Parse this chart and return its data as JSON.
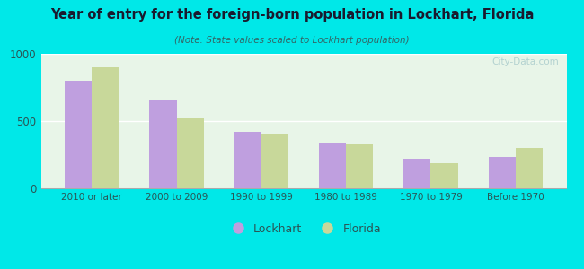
{
  "title": "Year of entry for the foreign-born population in Lockhart, Florida",
  "subtitle": "(Note: State values scaled to Lockhart population)",
  "categories": [
    "2010 or later",
    "2000 to 2009",
    "1990 to 1999",
    "1980 to 1989",
    "1970 to 1979",
    "Before 1970"
  ],
  "lockhart_values": [
    800,
    660,
    420,
    340,
    220,
    235
  ],
  "florida_values": [
    900,
    520,
    400,
    330,
    185,
    300
  ],
  "lockhart_color": "#bf9fdf",
  "florida_color": "#c8d89a",
  "background_color": "#00e8e8",
  "plot_bg_top": "#e8f5e8",
  "plot_bg_bottom": "#f8fdf2",
  "ylim": [
    0,
    1000
  ],
  "yticks": [
    0,
    500,
    1000
  ],
  "bar_width": 0.32,
  "legend_labels": [
    "Lockhart",
    "Florida"
  ],
  "watermark": "City-Data.com",
  "title_color": "#1a1a2e",
  "subtitle_color": "#336666"
}
